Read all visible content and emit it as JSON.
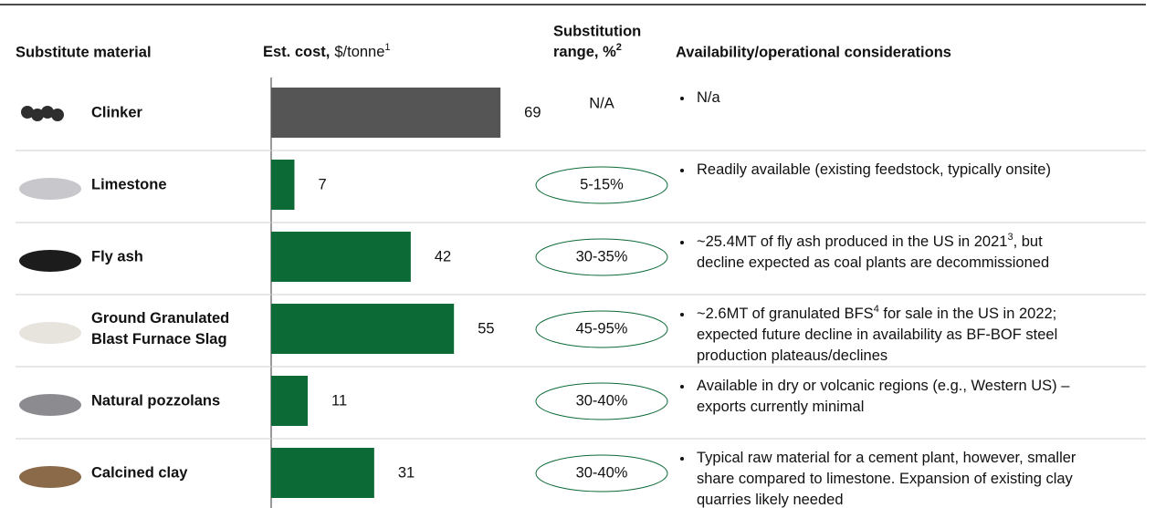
{
  "header": {
    "material": "Substitute material",
    "cost_label": "Est. cost,",
    "cost_unit": "$/tonne",
    "cost_note": "1",
    "range_line1": "Substitution",
    "range_line2": "range, %",
    "range_note": "2",
    "considerations": "Availability/operational considerations"
  },
  "rows": [
    {
      "name": [
        "Clinker"
      ],
      "cost": 69,
      "color": "#555555",
      "range": "N/A",
      "oval": false,
      "considerations": [
        [
          {
            "t": "N/a"
          }
        ]
      ]
    },
    {
      "name": [
        "Limestone"
      ],
      "cost": 7,
      "color": "#0b6a36",
      "range": "5-15%",
      "oval": true,
      "considerations": [
        [
          {
            "t": "Readily available (existing feedstock, typically onsite)"
          }
        ]
      ]
    },
    {
      "name": [
        "Fly ash"
      ],
      "cost": 42,
      "color": "#0b6a36",
      "range": "30-35%",
      "oval": true,
      "considerations": [
        [
          {
            "t": "~25.4MT of fly ash produced in the US in 2021"
          },
          {
            "sup": "3"
          },
          {
            "t": ", but"
          }
        ],
        [
          {
            "t": "decline expected as coal plants are decommissioned"
          }
        ]
      ]
    },
    {
      "name": [
        "Ground Granulated",
        "Blast Furnace Slag"
      ],
      "cost": 55,
      "color": "#0b6a36",
      "range": "45-95%",
      "oval": true,
      "considerations": [
        [
          {
            "t": "~2.6MT of granulated BFS"
          },
          {
            "sup": "4"
          },
          {
            "t": " for sale in the US in 2022;"
          }
        ],
        [
          {
            "t": "expected future decline in availability as BF-BOF steel"
          }
        ],
        [
          {
            "t": "production plateaus/declines"
          }
        ]
      ]
    },
    {
      "name": [
        "Natural pozzolans"
      ],
      "cost": 11,
      "color": "#0b6a36",
      "range": "30-40%",
      "oval": true,
      "considerations": [
        [
          {
            "t": "Available in dry or volcanic regions (e.g., Western US) –"
          }
        ],
        [
          {
            "t": "exports currently minimal"
          }
        ]
      ]
    },
    {
      "name": [
        "Calcined clay"
      ],
      "cost": 31,
      "color": "#0b6a36",
      "range": "30-40%",
      "oval": true,
      "considerations": [
        [
          {
            "t": "Typical raw material for a cement plant, however, smaller"
          }
        ],
        [
          {
            "t": "share compared to limestone. Expansion of existing clay"
          }
        ],
        [
          {
            "t": "quarries likely needed"
          }
        ]
      ]
    }
  ]
}
